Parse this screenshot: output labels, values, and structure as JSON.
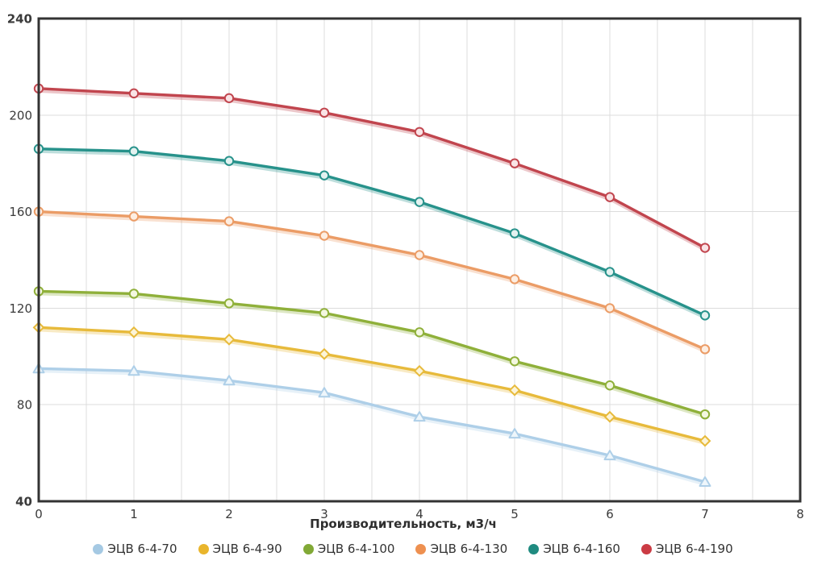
{
  "chart_data": {
    "type": "line",
    "title": "",
    "xlabel": "Производительность, м3/ч",
    "ylabel": "",
    "xlim": [
      0,
      8
    ],
    "ylim": [
      40,
      240
    ],
    "x_ticks": [
      0,
      1,
      2,
      3,
      4,
      5,
      6,
      7,
      8
    ],
    "y_ticks": [
      40,
      80,
      120,
      160,
      200,
      240
    ],
    "x_minor_grid_step": 0.5,
    "grid": true,
    "legend_position": "bottom",
    "x": [
      0,
      1,
      2,
      3,
      4,
      5,
      6,
      7
    ],
    "series": [
      {
        "name": "ЭЦВ 6-4-70",
        "color": "#aecfe8",
        "legend_color": "#a5c9e3",
        "marker": "triangle",
        "marker_fill": "#eef6fb",
        "values": [
          95,
          94,
          90,
          85,
          75,
          68,
          59,
          48
        ]
      },
      {
        "name": "ЭЦВ 6-4-90",
        "color": "#e7ba3b",
        "legend_color": "#e9b52c",
        "marker": "diamond",
        "marker_fill": "#fcf4d8",
        "values": [
          112,
          110,
          107,
          101,
          94,
          86,
          75,
          65
        ]
      },
      {
        "name": "ЭЦВ 6-4-100",
        "color": "#8fb03a",
        "legend_color": "#81a936",
        "marker": "circle",
        "marker_fill": "#f3f7e0",
        "values": [
          127,
          126,
          122,
          118,
          110,
          98,
          88,
          76
        ]
      },
      {
        "name": "ЭЦВ 6-4-130",
        "color": "#eb9c66",
        "legend_color": "#ee9050",
        "marker": "circle",
        "marker_fill": "#fdeee2",
        "values": [
          160,
          158,
          156,
          150,
          142,
          132,
          120,
          103
        ]
      },
      {
        "name": "ЭЦВ 6-4-160",
        "color": "#27928b",
        "legend_color": "#1f8b80",
        "marker": "circle",
        "marker_fill": "#e3f2f0",
        "values": [
          186,
          185,
          181,
          175,
          164,
          151,
          135,
          117
        ]
      },
      {
        "name": "ЭЦВ 6-4-190",
        "color": "#c1454e",
        "legend_color": "#cb3b44",
        "marker": "circle",
        "marker_fill": "#f9e4e6",
        "values": [
          211,
          209,
          207,
          201,
          193,
          180,
          166,
          145
        ]
      }
    ]
  },
  "colors": {
    "background": "#ffffff",
    "grid": "#dcdcdc",
    "axis_frame": "#333333",
    "tick_text": "#3b3b3b",
    "axis_title_text": "#2e2e2e",
    "legend_text": "#333333"
  }
}
